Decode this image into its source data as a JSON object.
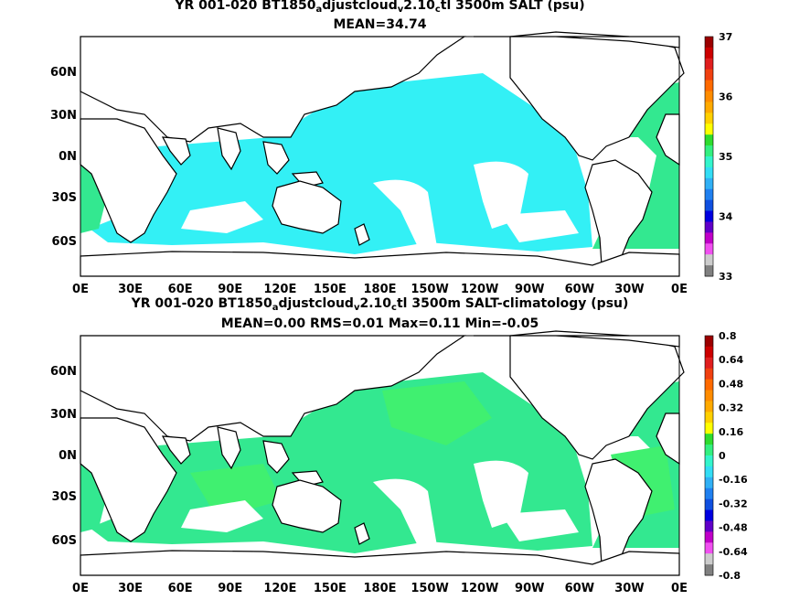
{
  "panel1": {
    "title_pre": "YR 001-020 BT1850",
    "sub_a": "a",
    "title_mid1": "djustcloud",
    "sub_v": "v",
    "title_mid2": "2.10",
    "sub_c": "c",
    "title_post": "tl 3500m SALT (psu)",
    "stats": "MEAN=34.74",
    "colorbar_labels": [
      "37",
      "36",
      "35",
      "34",
      "33"
    ],
    "colors": {
      "ocean": "#33f0f5",
      "atlantic": "#33e890"
    }
  },
  "panel2": {
    "title_pre": "YR 001-020 BT1850",
    "sub_a": "a",
    "title_mid1": "djustcloud",
    "sub_v": "v",
    "title_mid2": "2.10",
    "sub_c": "c",
    "title_post": "tl 3500m SALT-climatology (psu)",
    "stats": "MEAN=0.00   RMS=0.01   Max=0.11   Min=-0.05",
    "colorbar_labels": [
      "0.8",
      "0.64",
      "0.48",
      "0.32",
      "0.16",
      "0",
      "-0.16",
      "-0.32",
      "-0.48",
      "-0.64",
      "-0.8"
    ],
    "colors": {
      "ocean": "#33e890",
      "ocean_alt": "#40f070",
      "bright": "#22d022"
    }
  },
  "map": {
    "lat_labels": [
      "60N",
      "30N",
      "0N",
      "30S",
      "60S"
    ],
    "lon_labels": [
      "0E",
      "30E",
      "60E",
      "90E",
      "120E",
      "150E",
      "180E",
      "150W",
      "120W",
      "90W",
      "60W",
      "30W",
      "0E"
    ]
  },
  "colorbar_colors": [
    "#9b0000",
    "#cc0000",
    "#e01e1e",
    "#f04010",
    "#ff6a00",
    "#ff8c00",
    "#ffaa00",
    "#ffd000",
    "#ffff00",
    "#2edc2e",
    "#33f080",
    "#33f5cc",
    "#33ddf5",
    "#30b0f5",
    "#2080f0",
    "#1050e0",
    "#0000e0",
    "#6000c8",
    "#c000c8",
    "#f050f0",
    "#cccccc",
    "#808080"
  ]
}
